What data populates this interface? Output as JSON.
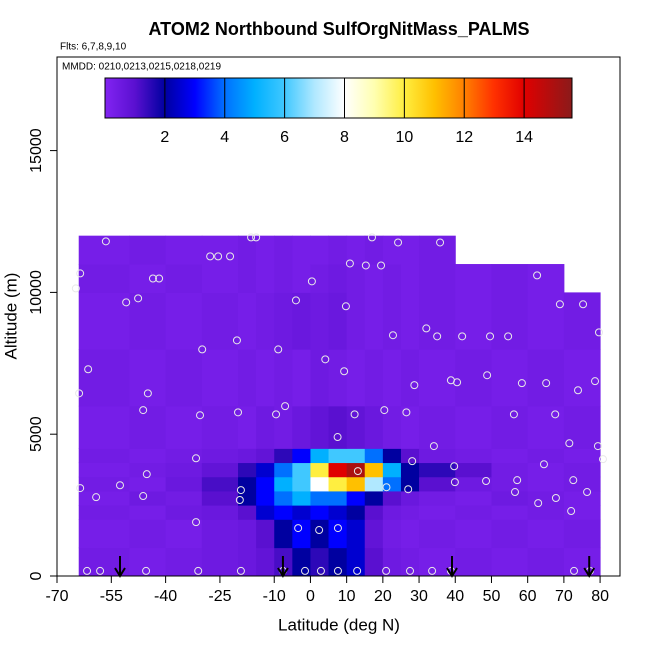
{
  "chart_data": {
    "type": "heatmap",
    "title": "ATOM2 Northbound SulfOrgNitMass_PALMS",
    "subtitle": "Flts: 6,7,8,9,10",
    "annotation": "MMDD: 0210,0213,0215,0218,0219",
    "x_label": "Latitude (deg N)",
    "y_label": "Altitude (m)",
    "xlim": [
      -70,
      85.5
    ],
    "ylim": [
      0,
      18300
    ],
    "xticks": [
      -70,
      -55,
      -40,
      -25,
      -10,
      0,
      10,
      20,
      30,
      40,
      50,
      60,
      70,
      80
    ],
    "yticks": [
      0,
      5000,
      10000,
      15000
    ],
    "x_edges": [
      -64,
      -50,
      -40,
      -30,
      -20,
      -15,
      -10,
      -5,
      0,
      5,
      10,
      15,
      20,
      25,
      30,
      40,
      50,
      60,
      70,
      80
    ],
    "y_edges": [
      0,
      1000,
      2000,
      2500,
      3000,
      3500,
      4000,
      4500,
      6000,
      8000,
      10000,
      11000,
      12000
    ],
    "z": [
      [
        0.4,
        0.3,
        0.4,
        0.5,
        0.6,
        0.8,
        1.2,
        2,
        1.5,
        2,
        2.5,
        1,
        0.5,
        0.4,
        0.3,
        0.4,
        0.3,
        0.4,
        0.3
      ],
      [
        0.3,
        0.4,
        0.3,
        0.5,
        0.6,
        1,
        2,
        3,
        2,
        3,
        2.5,
        0.8,
        0.4,
        0.3,
        0.4,
        0.3,
        0.4,
        0.3,
        0.4
      ],
      [
        0.4,
        0.3,
        0.5,
        0.6,
        1,
        2.5,
        3,
        2.5,
        3,
        2.5,
        2,
        1,
        0.5,
        0.4,
        0.3,
        0.4,
        0.3,
        0.4,
        0.3
      ],
      [
        0.3,
        0.5,
        0.4,
        1,
        2,
        3,
        4,
        5,
        4,
        4,
        3,
        2,
        1,
        0.6,
        0.4,
        0.3,
        0.5,
        0.4,
        0.3
      ],
      [
        0.4,
        0.3,
        0.6,
        1.2,
        2,
        3,
        5,
        6,
        8,
        10,
        11,
        7,
        4,
        2,
        1,
        0.5,
        0.4,
        0.3,
        0.4
      ],
      [
        0.3,
        0.4,
        0.5,
        0.8,
        1.5,
        2.5,
        4,
        6,
        10,
        14,
        15,
        11,
        5,
        2,
        1.5,
        1,
        0.4,
        0.3,
        0.4
      ],
      [
        0.4,
        0.3,
        0.4,
        0.5,
        0.6,
        0.8,
        1.5,
        3,
        5,
        6,
        6,
        4,
        2,
        1,
        0.5,
        0.4,
        0.3,
        0.4,
        0.3
      ],
      [
        0.3,
        0.4,
        0.3,
        0.4,
        0.3,
        0.5,
        0.4,
        0.6,
        0.8,
        1,
        0.8,
        0.6,
        0.4,
        0.3,
        0.4,
        0.3,
        0.4,
        0.3,
        0.4
      ],
      [
        0.4,
        0.3,
        0.4,
        0.3,
        0.4,
        0.3,
        0.4,
        0.3,
        0.5,
        0.4,
        0.3,
        0.4,
        0.3,
        0.4,
        0.3,
        0.4,
        0.3,
        0.4,
        0.3
      ],
      [
        0.3,
        0.4,
        0.3,
        0.4,
        0.3,
        0.4,
        0.5,
        0.6,
        0.5,
        0.6,
        0.4,
        0.3,
        0.4,
        0.3,
        0.4,
        0.3,
        0.4,
        0.3,
        0.4
      ],
      [
        0.4,
        0.3,
        0.4,
        0.3,
        0.4,
        0.3,
        0.4,
        0.3,
        0.4,
        0.5,
        0.4,
        0.3,
        0.4,
        0.3,
        0.4,
        0.3,
        0.4,
        0.3,
        null
      ],
      [
        0.3,
        0.4,
        0.3,
        0.3,
        0.4,
        0.3,
        0.4,
        0.3,
        0.3,
        0.4,
        0.3,
        0.4,
        0.3,
        0.3,
        0.4,
        null,
        null,
        null,
        null
      ]
    ],
    "clim": [
      0,
      15.6
    ],
    "cticks": [
      2,
      4,
      6,
      8,
      10,
      12,
      14
    ],
    "colorscale": [
      [
        0,
        "#8224f2"
      ],
      [
        1,
        "#5a10d0"
      ],
      [
        2,
        "#0000a0"
      ],
      [
        3,
        "#0000ff"
      ],
      [
        4,
        "#0070ff"
      ],
      [
        5,
        "#00b0ff"
      ],
      [
        6,
        "#40c8ff"
      ],
      [
        7,
        "#b0e8ff"
      ],
      [
        8,
        "#ffffff"
      ],
      [
        9,
        "#ffffb0"
      ],
      [
        10,
        "#ffee40"
      ],
      [
        11,
        "#ffc000"
      ],
      [
        12,
        "#ff8000"
      ],
      [
        13,
        "#ff3000"
      ],
      [
        14,
        "#e00000"
      ],
      [
        15.6,
        "#8b1a1a"
      ]
    ],
    "points": {
      "color": "#e8e8e8",
      "x": [
        -64.8,
        -63.6,
        -56.5,
        -61.4,
        -63.9,
        -63.6,
        -59.2,
        -52.6,
        -50.9,
        -47.6,
        -43.5,
        -41.8,
        -44.9,
        -46.2,
        -45.2,
        -46.2,
        -27.7,
        -25.5,
        -22.2,
        -16.4,
        -15,
        -29.9,
        -20.3,
        -20,
        -30.5,
        -31.6,
        -19.2,
        -19.5,
        -31.6,
        -8.9,
        -7,
        -9.5,
        -4,
        0.4,
        9.8,
        10.9,
        15.3,
        19.5,
        17,
        4.1,
        9.3,
        7.5,
        12.2,
        20.4,
        26.5,
        28.7,
        32,
        35,
        22.8,
        24.2,
        35.8,
        41.9,
        49.6,
        54.6,
        58.4,
        65.1,
        73.9,
        78.6,
        62.6,
        68.9,
        75.3,
        79.7,
        79.4,
        80.8,
        67.6,
        71.5,
        72.6,
        67.8,
        72,
        64.5,
        57.1,
        56.5,
        62.9,
        76.4,
        38.8,
        40.5,
        34.1,
        39.7,
        39.9,
        48.5,
        48.8,
        56.2,
        28.1,
        27,
        21,
        13.1,
        -61.7,
        -58.1,
        -45.4,
        -31,
        -19.2,
        -7.6,
        -1.5,
        2.9,
        7.6,
        12.9,
        20.9,
        27.5,
        33.6,
        38.8,
        72.8,
        77.2,
        2.4,
        -3.4,
        7.6
      ],
      "y": [
        10140,
        10670,
        11800,
        7290,
        6440,
        3100,
        2780,
        3200,
        9650,
        9790,
        10490,
        10490,
        6440,
        5850,
        3590,
        2820,
        11270,
        11270,
        11270,
        11940,
        11940,
        7990,
        8310,
        5770,
        5670,
        4150,
        3030,
        2680,
        1900,
        7990,
        5990,
        5700,
        9720,
        10390,
        9510,
        11020,
        10950,
        10950,
        11940,
        7640,
        7220,
        4900,
        5700,
        5850,
        5770,
        6730,
        8730,
        8450,
        8490,
        11760,
        11760,
        8450,
        8450,
        8450,
        6800,
        6800,
        6550,
        6870,
        10600,
        9580,
        9580,
        8590,
        4580,
        4120,
        5700,
        4680,
        3380,
        2750,
        2290,
        3940,
        3380,
        2960,
        2570,
        2960,
        6900,
        6830,
        4580,
        3870,
        3310,
        3350,
        7080,
        5700,
        4050,
        3060,
        3130,
        3700,
        180,
        180,
        180,
        180,
        180,
        180,
        180,
        180,
        180,
        180,
        180,
        180,
        180,
        180,
        180,
        180,
        1620,
        1690,
        1690
      ]
    },
    "arrows_x": [
      -52.6,
      -7.6,
      39.1,
      77
    ]
  }
}
